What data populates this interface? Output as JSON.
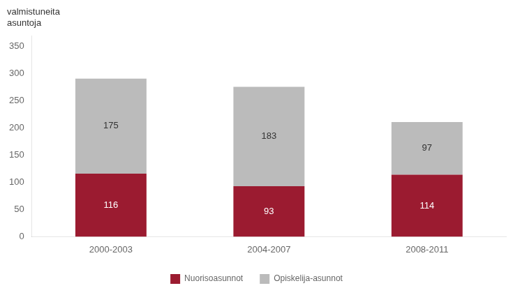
{
  "chart_data": {
    "type": "bar",
    "stacked": true,
    "ylabel": [
      "valmistuneita",
      "asuntoja"
    ],
    "categories": [
      "2000-2003",
      "2004-2007",
      "2008-2011"
    ],
    "series": [
      {
        "name": "Nuorisoasunnot",
        "color": "#9B1B30",
        "values": [
          116,
          93,
          114
        ]
      },
      {
        "name": "Opiskelija-asunnot",
        "color": "#BBBBBB",
        "values": [
          175,
          183,
          97
        ]
      }
    ],
    "ylim": [
      0,
      370
    ],
    "yticks": [
      0,
      50,
      100,
      150,
      200,
      250,
      300,
      350
    ],
    "grid": false,
    "legend": "bottom",
    "data_labels": true
  }
}
